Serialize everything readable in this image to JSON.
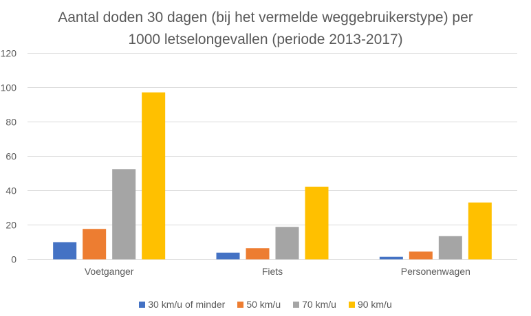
{
  "chart_data": {
    "type": "bar",
    "title_lines": [
      "Aantal doden 30 dagen (bij het vermelde weggebruikerstype) per",
      "1000 letselongevallen (periode 2013-2017)"
    ],
    "categories": [
      "Voetganger",
      "Fiets",
      "Personenwagen"
    ],
    "series": [
      {
        "name": "30 km/u of minder",
        "color": "#4472C4",
        "values": [
          10,
          3.9,
          1.5
        ]
      },
      {
        "name": "50 km/u",
        "color": "#ED7D31",
        "values": [
          17.7,
          6.5,
          4.5
        ]
      },
      {
        "name": "70 km/u",
        "color": "#A5A5A5",
        "values": [
          52.5,
          18.9,
          13.5
        ]
      },
      {
        "name": "90 km/u",
        "color": "#FFC000",
        "values": [
          97.2,
          42.3,
          33.1
        ]
      }
    ],
    "ylim": [
      0,
      120
    ],
    "yticks": [
      "0",
      "20",
      "40",
      "60",
      "80",
      "100",
      "120"
    ],
    "xlabel": "",
    "ylabel": "",
    "grid": true,
    "legend_position": "bottom"
  }
}
